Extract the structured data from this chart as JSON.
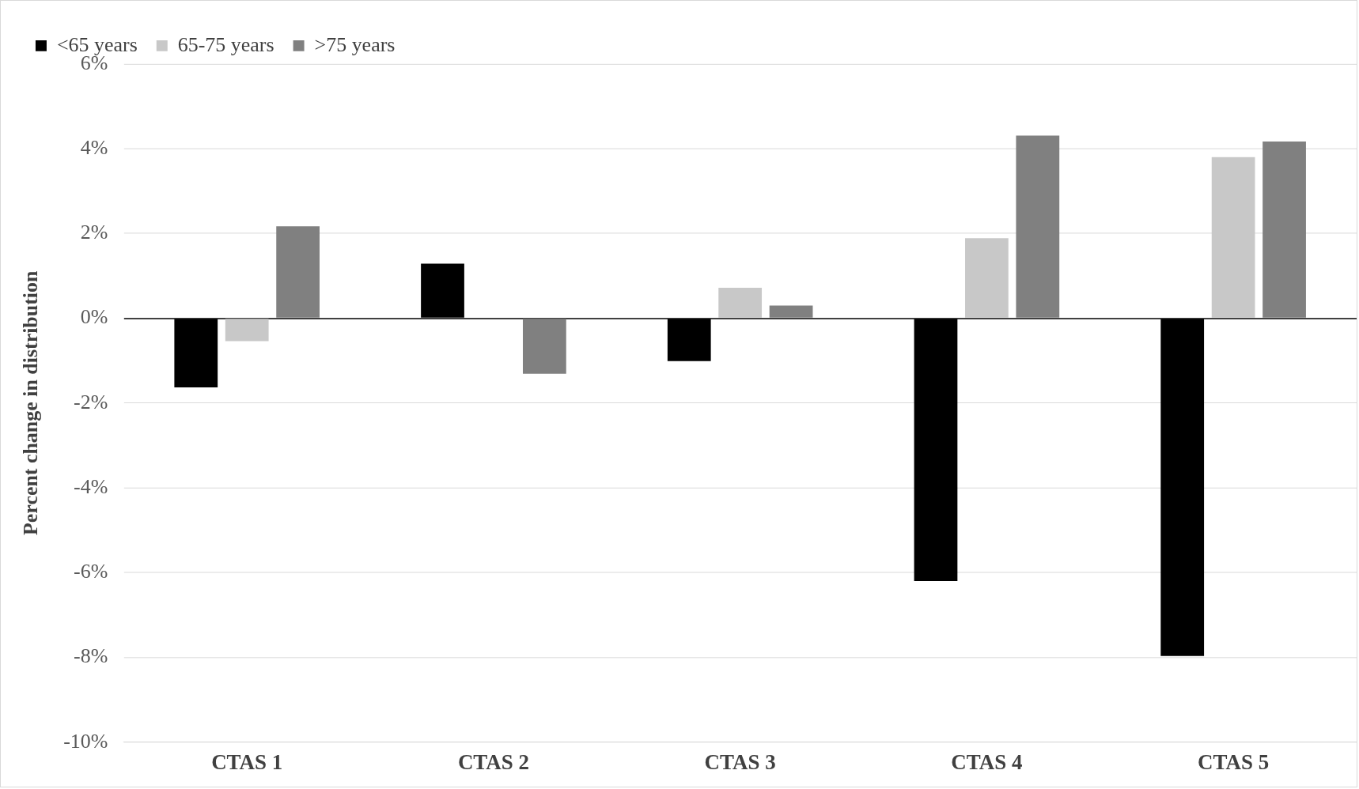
{
  "chart_data": {
    "type": "bar",
    "ylabel": "Percent change in distribution",
    "categories": [
      "CTAS 1",
      "CTAS 2",
      "CTAS 3",
      "CTAS 4",
      "CTAS 5"
    ],
    "series": [
      {
        "name": "<65 years",
        "color": "#000000",
        "values": [
          -1.63,
          1.29,
          -1.01,
          -6.2,
          -7.97
        ]
      },
      {
        "name": "65-75 years",
        "color": "#c8c8c8",
        "values": [
          -0.54,
          null,
          0.72,
          1.89,
          3.8
        ]
      },
      {
        "name": ">75 years",
        "color": "#808080",
        "values": [
          2.17,
          -1.31,
          0.3,
          4.31,
          4.17
        ]
      }
    ],
    "ylim": [
      -10,
      6
    ],
    "yticks": [
      {
        "value": -10,
        "label": "-10%"
      },
      {
        "value": -8,
        "label": "-8%"
      },
      {
        "value": -6,
        "label": "-6%"
      },
      {
        "value": -4,
        "label": "-4%"
      },
      {
        "value": -2,
        "label": "-2%"
      },
      {
        "value": 0,
        "label": "0%"
      },
      {
        "value": 2,
        "label": "2%"
      },
      {
        "value": 4,
        "label": "4%"
      },
      {
        "value": 6,
        "label": "6%"
      }
    ],
    "grid": "y",
    "legend": "top left"
  }
}
